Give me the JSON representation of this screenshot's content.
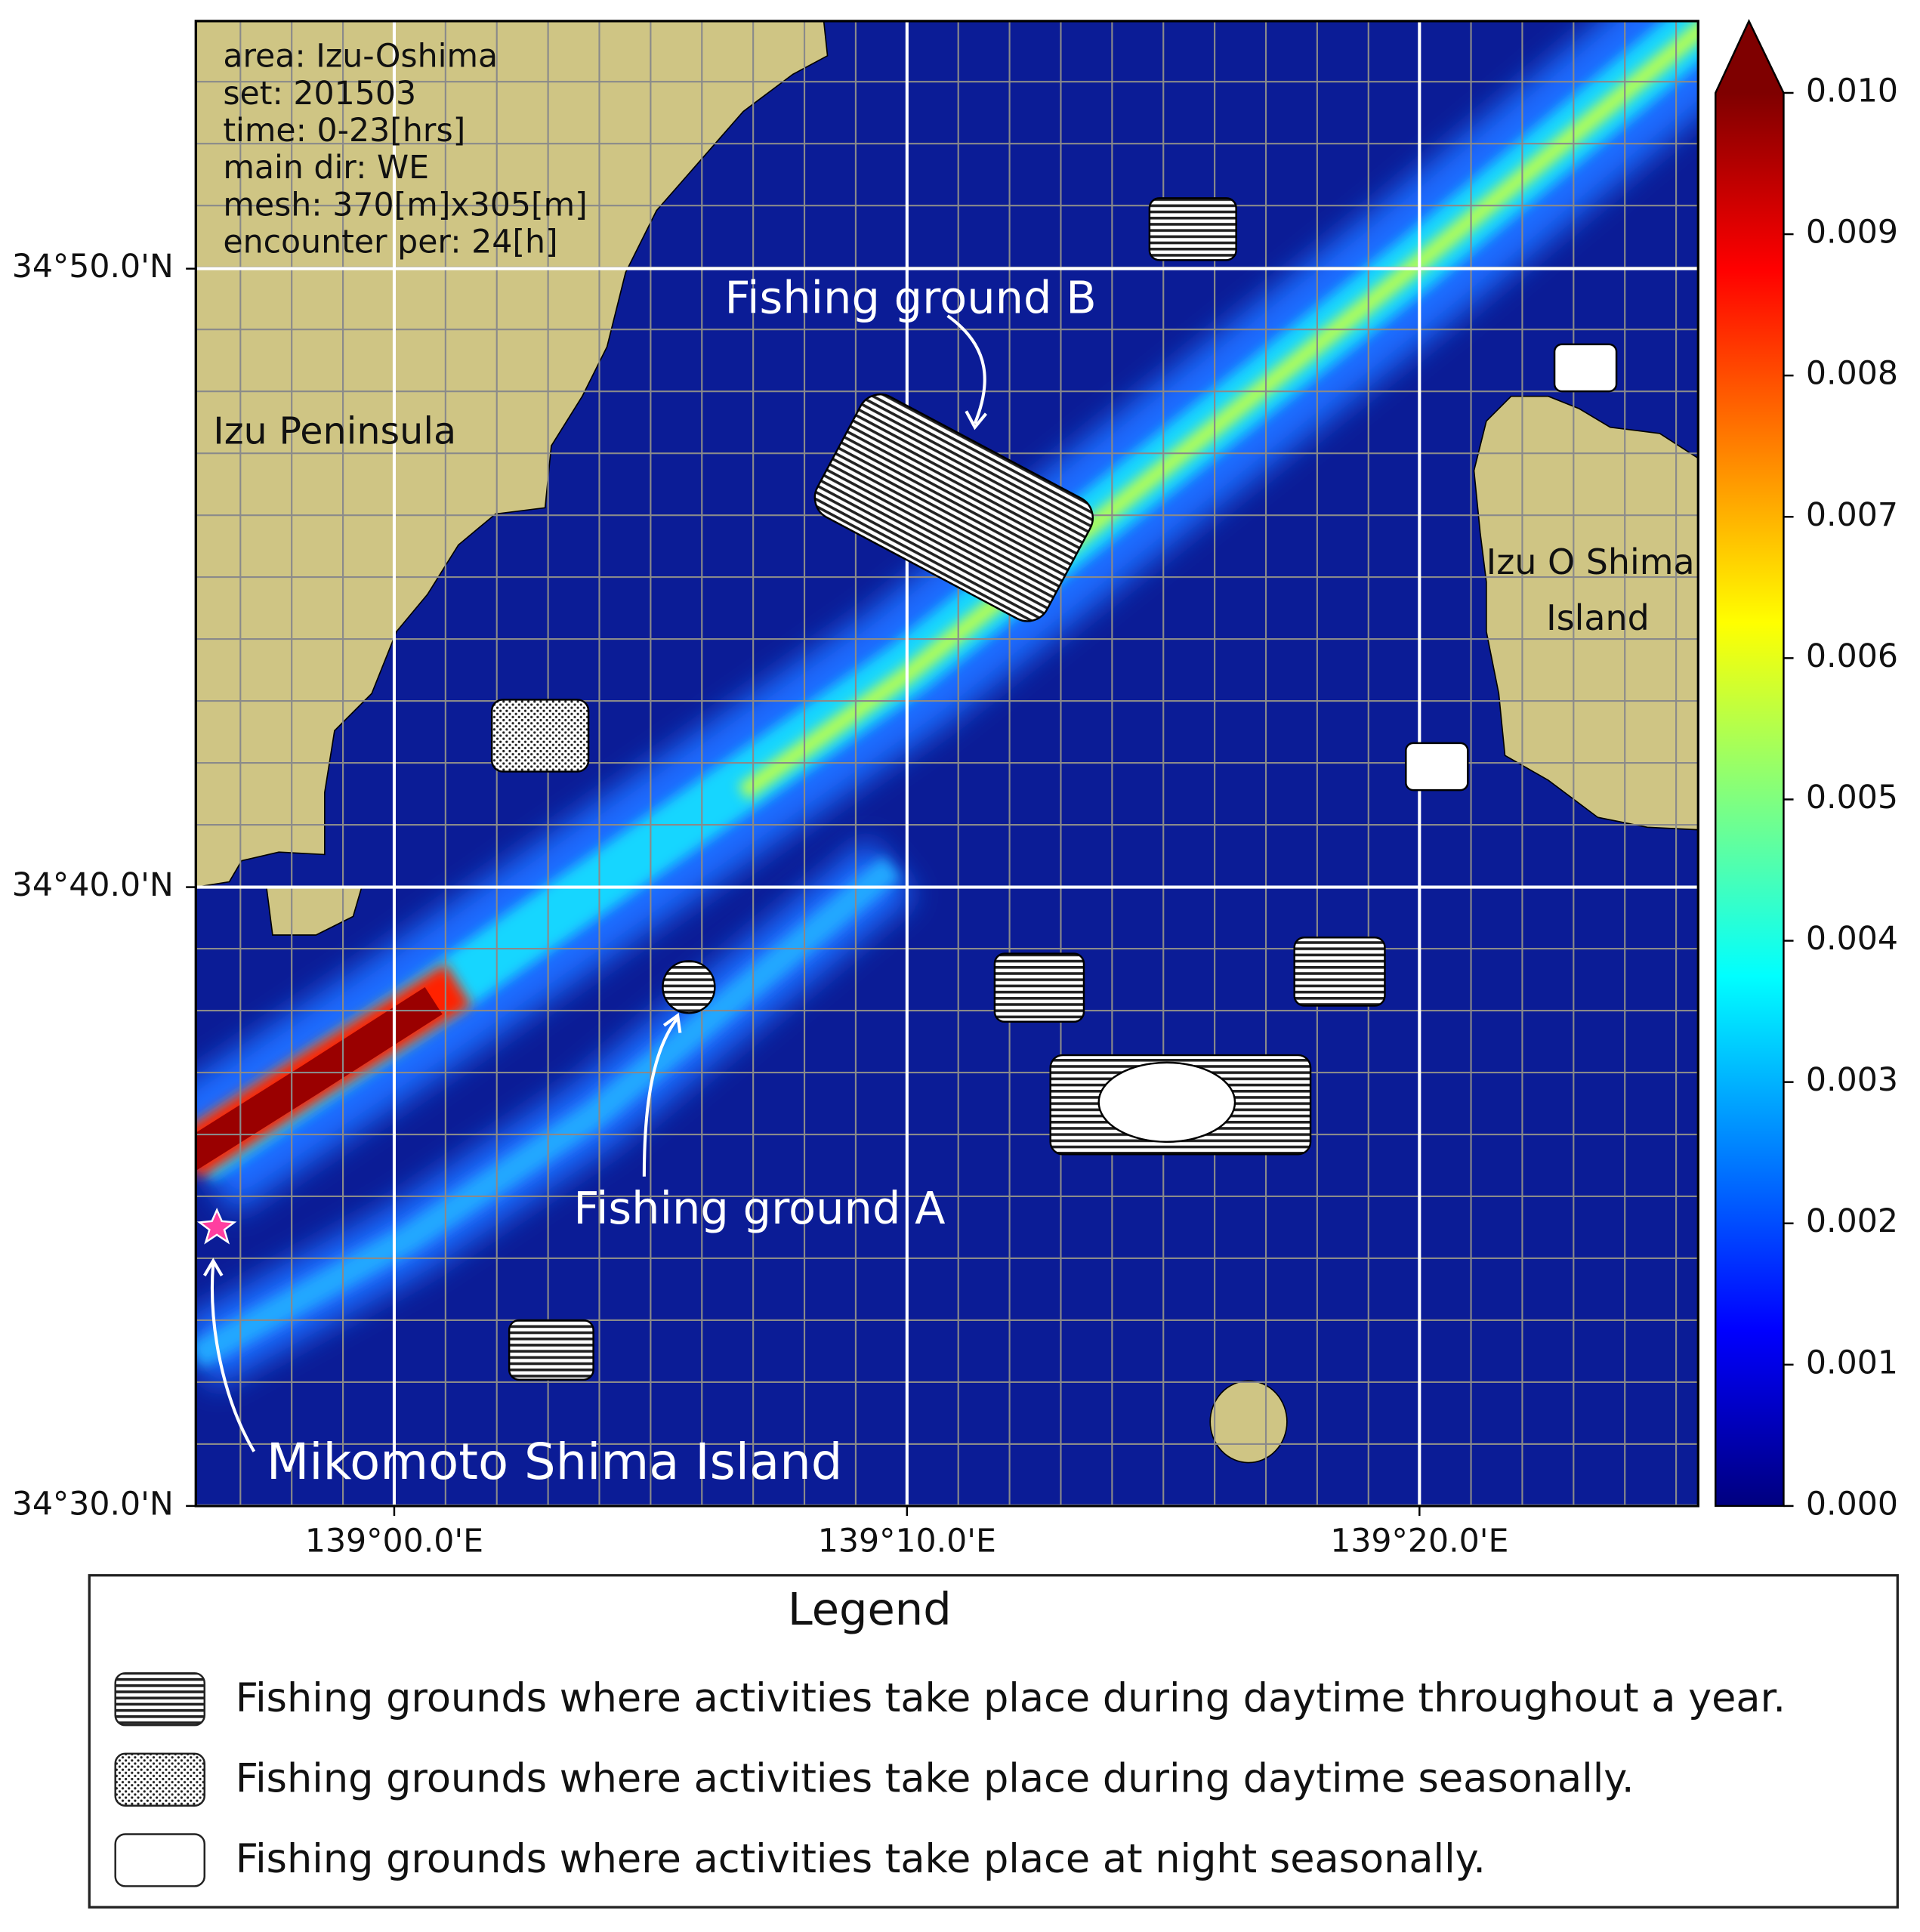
{
  "map": {
    "info_box": [
      "area: Izu-Oshima",
      "set: 201503",
      "time: 0-23[hrs]",
      "main dir: WE",
      "mesh: 370[m]x305[m]",
      "encounter per: 24[h]"
    ],
    "lon_range": [
      138.9355,
      139.4239
    ],
    "lat_range": [
      34.5,
      34.9
    ],
    "lon_ticks": [
      {
        "value": 139.0,
        "label": "139°00.0'E"
      },
      {
        "value": 139.1667,
        "label": "139°10.0'E"
      },
      {
        "value": 139.3333,
        "label": "139°20.0'E"
      }
    ],
    "lat_ticks": [
      {
        "value": 34.5,
        "label": "34°30.0'N"
      },
      {
        "value": 34.6667,
        "label": "34°40.0'N"
      },
      {
        "value": 34.8333,
        "label": "34°50.0'N"
      }
    ],
    "place_labels": {
      "peninsula": "Izu Peninsula",
      "island": [
        "Izu O Shima",
        "Island"
      ],
      "mikomoto": "Mikomoto Shima Island"
    },
    "annotations": {
      "ground_a": "Fishing ground A",
      "ground_b": "Fishing ground B"
    },
    "colorbar": {
      "colormap": "jet",
      "extend": "max",
      "ticks": [
        {
          "value": 0,
          "label": "0.000"
        },
        {
          "value": 0.001,
          "label": "0.001"
        },
        {
          "value": 0.002,
          "label": "0.002"
        },
        {
          "value": 0.003,
          "label": "0.003"
        },
        {
          "value": 0.004,
          "label": "0.004"
        },
        {
          "value": 0.005,
          "label": "0.005"
        },
        {
          "value": 0.006,
          "label": "0.006"
        },
        {
          "value": 0.007,
          "label": "0.007"
        },
        {
          "value": 0.008,
          "label": "0.008"
        },
        {
          "value": 0.009,
          "label": "0.009"
        },
        {
          "value": 0.01,
          "label": "0.010"
        }
      ]
    },
    "legend": {
      "title": "Legend",
      "items": [
        "Fishing grounds where activities take place during daytime throughout a year.",
        "Fishing grounds where activities take place during daytime seasonally.",
        "Fishing grounds where activities take place at night seasonally."
      ]
    }
  }
}
